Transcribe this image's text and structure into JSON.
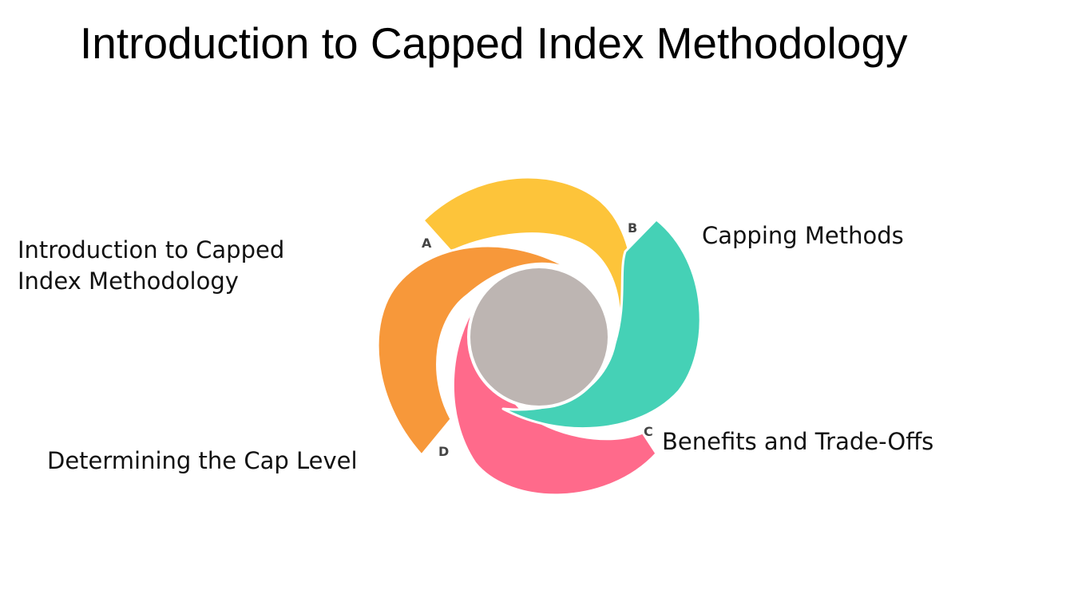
{
  "title": "Introduction to Capped Index Methodology",
  "items": [
    {
      "letter": "A",
      "lines": [
        "Introduction to Capped",
        "Index Methodology"
      ],
      "color": "#FDC43A"
    },
    {
      "letter": "B",
      "lines": [
        "Capping Methods"
      ],
      "color": "#45D1B6"
    },
    {
      "letter": "C",
      "lines": [
        "Benefits and Trade-Offs"
      ],
      "color": "#FF6A8B"
    },
    {
      "letter": "D",
      "lines": [
        "Determining the Cap Level"
      ],
      "color": "#F7983A"
    }
  ],
  "hub_color": "#BDB5B2"
}
